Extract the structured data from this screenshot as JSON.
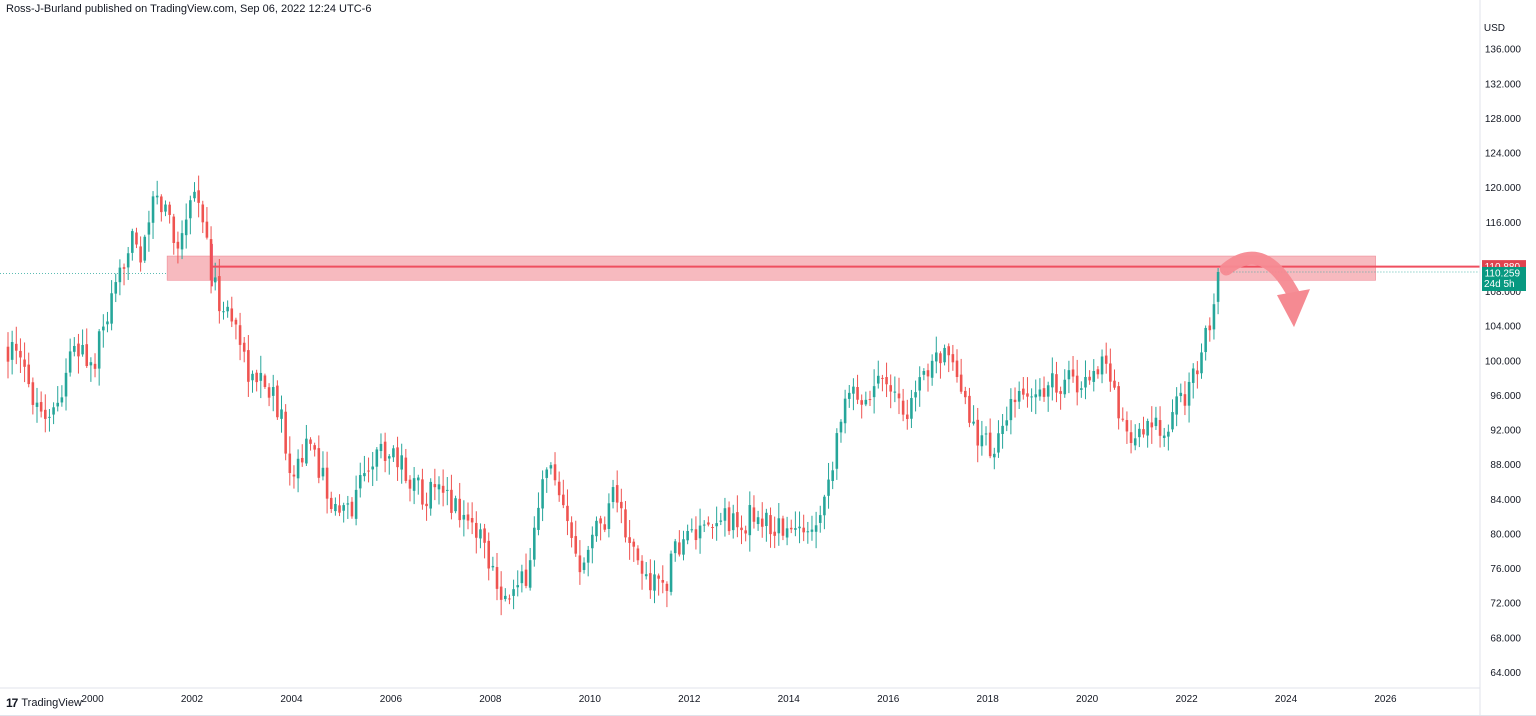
{
  "header": {
    "published_text": "Ross-J-Burland published on TradingView.com, Sep 06, 2022 12:24 UTC-6"
  },
  "footer": {
    "logo_mark": "17",
    "logo_text": "TradingView"
  },
  "colors": {
    "up": "#26a69a",
    "down": "#ef5350",
    "zone_fill": "#f4a3aa",
    "resistance_line": "#ef4f5f",
    "arrow": "#f58a92",
    "axis_text": "#131722",
    "border": "#e0e3eb"
  },
  "chart_data": {
    "type": "candlestick",
    "timeframe": "monthly",
    "currency_label": "USD",
    "x_range": [
      1998.3,
      2027.9
    ],
    "y_range": [
      62.2,
      139.6
    ],
    "grid": false,
    "x_ticks": [
      "2000",
      "2002",
      "2004",
      "2006",
      "2008",
      "2010",
      "2012",
      "2014",
      "2016",
      "2018",
      "2020",
      "2022",
      "2024",
      "2026"
    ],
    "y_ticks": [
      "136.000",
      "132.000",
      "128.000",
      "124.000",
      "120.000",
      "116.000",
      "108.000",
      "104.000",
      "100.000",
      "96.000",
      "92.000",
      "88.000",
      "84.000",
      "80.000",
      "76.000",
      "72.000",
      "68.000",
      "64.000"
    ],
    "resistance_zone": {
      "x_start": 2001.5,
      "x_end": 2025.8,
      "y_low": 109.3,
      "y_high": 112.1
    },
    "resistance_level": 110.88,
    "resistance_label": "110.880",
    "last_price": 110.259,
    "last_price_label": "110.259",
    "countdown_label": "24d 5h",
    "reference_price": 110.1,
    "arrow_annotation": {
      "from": [
        2022.8,
        110.6
      ],
      "to": [
        2024.2,
        106.2
      ],
      "direction": "down"
    },
    "path_points": [
      [
        1998.3,
        101.5
      ],
      [
        1998.6,
        99.0
      ],
      [
        1999.0,
        94.0
      ],
      [
        1999.3,
        95.0
      ],
      [
        1999.5,
        100.0
      ],
      [
        1999.8,
        101.5
      ],
      [
        2000.0,
        98.5
      ],
      [
        2000.2,
        103.5
      ],
      [
        2000.5,
        108.0
      ],
      [
        2000.8,
        116.0
      ],
      [
        2001.0,
        111.0
      ],
      [
        2001.2,
        118.5
      ],
      [
        2001.5,
        117.5
      ],
      [
        2001.7,
        113.0
      ],
      [
        2002.0,
        120.0
      ],
      [
        2002.2,
        117.5
      ],
      [
        2002.4,
        109.0
      ],
      [
        2002.6,
        106.5
      ],
      [
        2002.9,
        104.0
      ],
      [
        2003.2,
        97.5
      ],
      [
        2003.5,
        98.0
      ],
      [
        2003.8,
        93.0
      ],
      [
        2004.0,
        87.5
      ],
      [
        2004.3,
        90.0
      ],
      [
        2004.6,
        87.5
      ],
      [
        2004.9,
        82.0
      ],
      [
        2005.2,
        83.0
      ],
      [
        2005.5,
        88.0
      ],
      [
        2005.8,
        89.5
      ],
      [
        2006.0,
        90.0
      ],
      [
        2006.3,
        87.0
      ],
      [
        2006.6,
        85.0
      ],
      [
        2006.9,
        84.5
      ],
      [
        2007.2,
        84.0
      ],
      [
        2007.5,
        82.0
      ],
      [
        2007.8,
        80.0
      ],
      [
        2008.0,
        77.0
      ],
      [
        2008.3,
        72.5
      ],
      [
        2008.6,
        73.5
      ],
      [
        2008.8,
        77.0
      ],
      [
        2009.0,
        85.0
      ],
      [
        2009.2,
        87.5
      ],
      [
        2009.4,
        83.0
      ],
      [
        2009.6,
        80.0
      ],
      [
        2009.8,
        77.0
      ],
      [
        2010.0,
        80.0
      ],
      [
        2010.3,
        82.0
      ],
      [
        2010.5,
        86.0
      ],
      [
        2010.7,
        80.0
      ],
      [
        2011.0,
        76.0
      ],
      [
        2011.2,
        74.5
      ],
      [
        2011.5,
        74.0
      ],
      [
        2011.8,
        79.0
      ],
      [
        2012.1,
        80.0
      ],
      [
        2012.4,
        79.5
      ],
      [
        2012.7,
        82.5
      ],
      [
        2013.0,
        80.0
      ],
      [
        2013.3,
        82.5
      ],
      [
        2013.6,
        81.0
      ],
      [
        2013.9,
        80.5
      ],
      [
        2014.2,
        80.0
      ],
      [
        2014.5,
        81.5
      ],
      [
        2014.8,
        86.0
      ],
      [
        2015.0,
        93.0
      ],
      [
        2015.3,
        96.5
      ],
      [
        2015.6,
        96.0
      ],
      [
        2015.9,
        99.0
      ],
      [
        2016.1,
        97.0
      ],
      [
        2016.3,
        94.0
      ],
      [
        2016.6,
        96.0
      ],
      [
        2016.9,
        101.5
      ],
      [
        2017.1,
        101.0
      ],
      [
        2017.4,
        97.0
      ],
      [
        2017.7,
        92.5
      ],
      [
        2018.0,
        90.0
      ],
      [
        2018.2,
        90.5
      ],
      [
        2018.5,
        94.5
      ],
      [
        2018.8,
        96.5
      ],
      [
        2019.0,
        96.0
      ],
      [
        2019.3,
        97.5
      ],
      [
        2019.6,
        98.0
      ],
      [
        2019.9,
        97.0
      ],
      [
        2020.1,
        99.0
      ],
      [
        2020.3,
        100.0
      ],
      [
        2020.5,
        97.0
      ],
      [
        2020.7,
        93.5
      ],
      [
        2021.0,
        90.5
      ],
      [
        2021.3,
        92.5
      ],
      [
        2021.5,
        91.0
      ],
      [
        2021.8,
        94.5
      ],
      [
        2022.0,
        96.5
      ],
      [
        2022.2,
        99.0
      ],
      [
        2022.4,
        103.5
      ],
      [
        2022.5,
        105.5
      ],
      [
        2022.6,
        108.5
      ],
      [
        2022.7,
        110.26
      ]
    ]
  }
}
